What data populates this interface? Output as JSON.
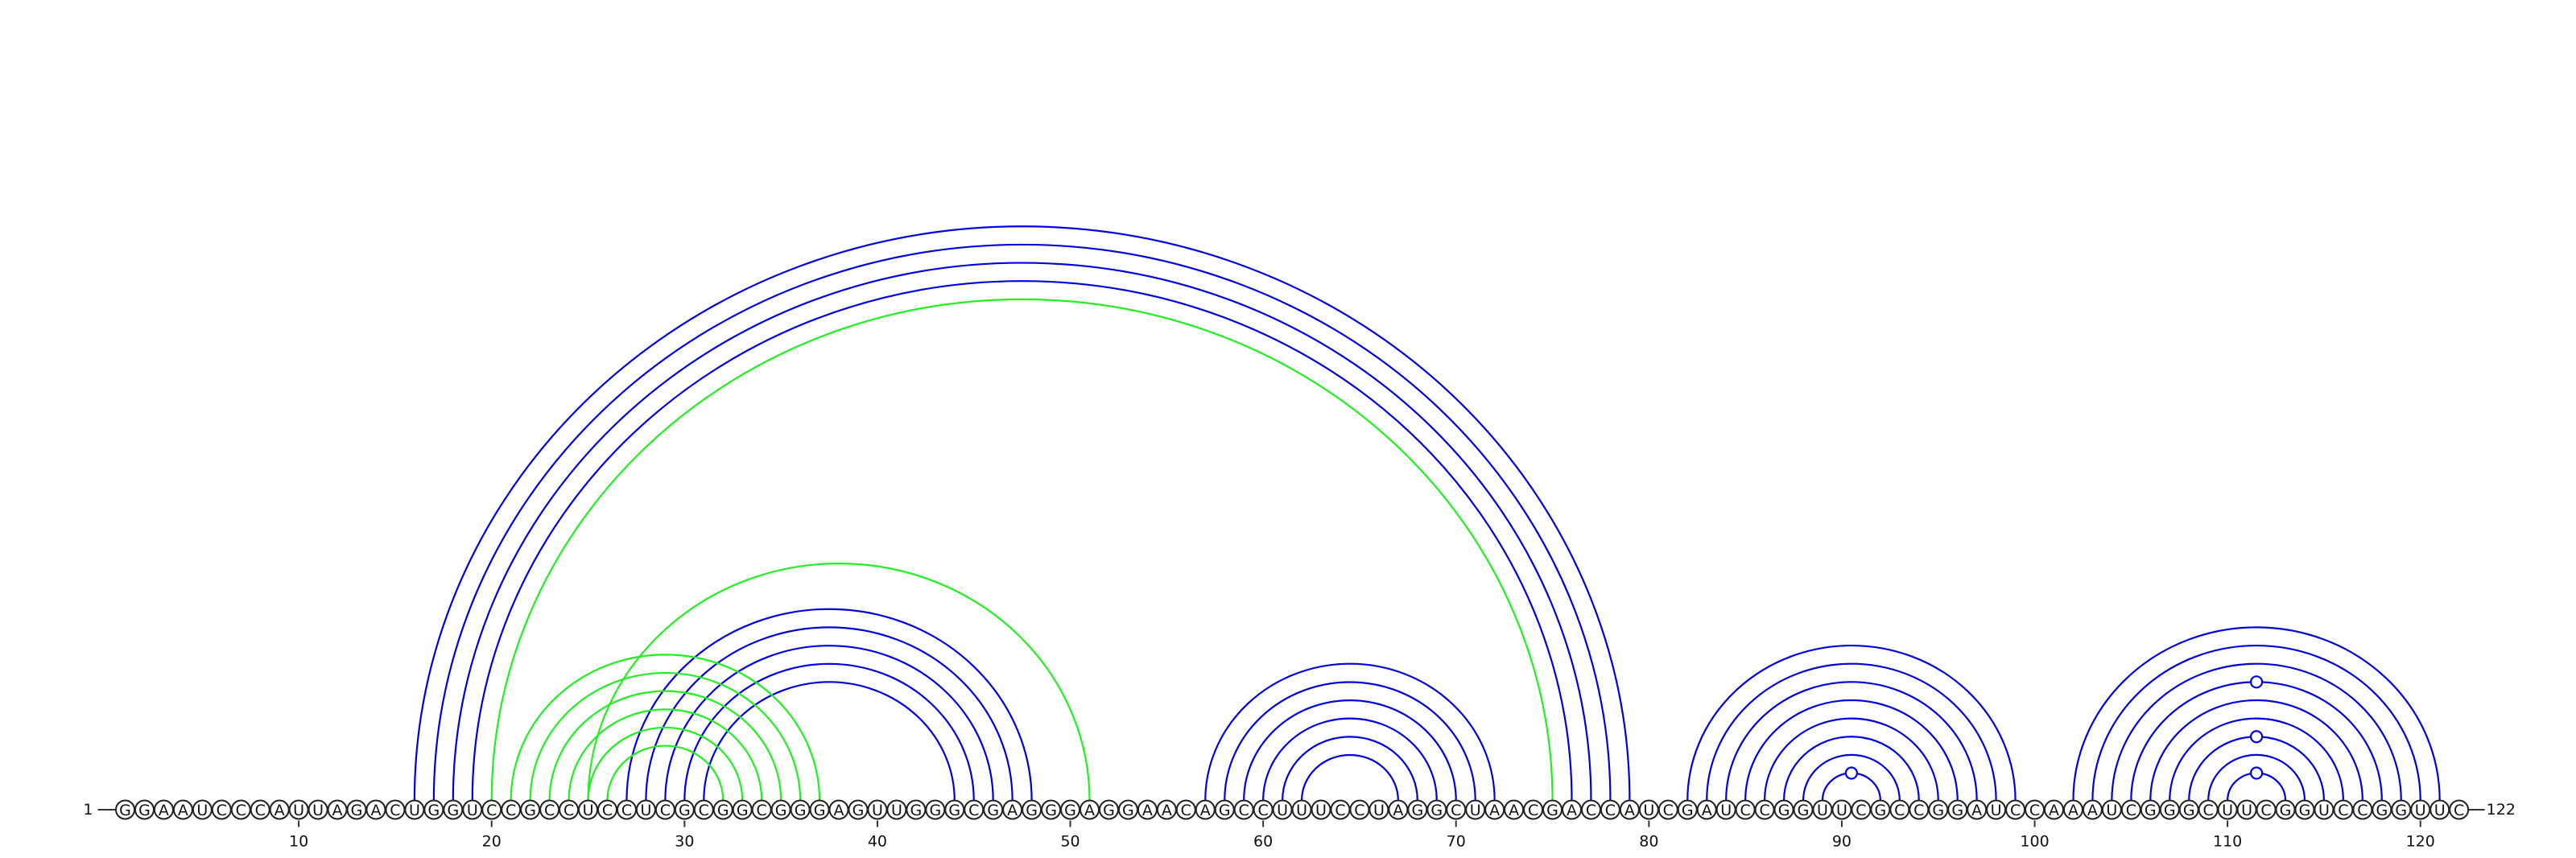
{
  "sequence": "GGAAUCCCAUUAGACUGGUCCGCCUCCUCGCGGCGGGAGUUGGGCGAGGGAGGAACAGCCUUUCCUAGGCUAACGACCAUCGAUCCGGUUCGCCGGAUCCAAAUCGGGCUUCGGUCCGGUUC",
  "start_label": "1",
  "end_label": "122",
  "ticks": [
    "10",
    "20",
    "30",
    "40",
    "50",
    "60",
    "70",
    "80",
    "90",
    "100",
    "110",
    "120"
  ],
  "colors": {
    "primary": "#0000dd",
    "pseudoknot": "#22ee22"
  },
  "pairs": [
    {
      "i": 16,
      "j": 79,
      "color": "primary"
    },
    {
      "i": 17,
      "j": 78,
      "color": "primary"
    },
    {
      "i": 18,
      "j": 77,
      "color": "primary"
    },
    {
      "i": 19,
      "j": 76,
      "color": "primary"
    },
    {
      "i": 20,
      "j": 75,
      "color": "pseudoknot"
    },
    {
      "i": 27,
      "j": 48,
      "color": "primary"
    },
    {
      "i": 28,
      "j": 47,
      "color": "primary"
    },
    {
      "i": 29,
      "j": 46,
      "color": "primary"
    },
    {
      "i": 30,
      "j": 45,
      "color": "primary"
    },
    {
      "i": 31,
      "j": 44,
      "color": "primary"
    },
    {
      "i": 25,
      "j": 51,
      "color": "pseudoknot"
    },
    {
      "i": 21,
      "j": 37,
      "color": "pseudoknot"
    },
    {
      "i": 22,
      "j": 36,
      "color": "pseudoknot"
    },
    {
      "i": 23,
      "j": 35,
      "color": "pseudoknot"
    },
    {
      "i": 24,
      "j": 34,
      "color": "pseudoknot"
    },
    {
      "i": 25,
      "j": 33,
      "color": "pseudoknot"
    },
    {
      "i": 26,
      "j": 32,
      "color": "pseudoknot"
    },
    {
      "i": 57,
      "j": 72,
      "color": "primary"
    },
    {
      "i": 58,
      "j": 71,
      "color": "primary"
    },
    {
      "i": 59,
      "j": 70,
      "color": "primary"
    },
    {
      "i": 60,
      "j": 69,
      "color": "primary"
    },
    {
      "i": 61,
      "j": 68,
      "color": "primary"
    },
    {
      "i": 62,
      "j": 67,
      "color": "primary"
    },
    {
      "i": 82,
      "j": 99,
      "color": "primary"
    },
    {
      "i": 83,
      "j": 98,
      "color": "primary"
    },
    {
      "i": 84,
      "j": 97,
      "color": "primary"
    },
    {
      "i": 85,
      "j": 96,
      "color": "primary"
    },
    {
      "i": 86,
      "j": 95,
      "color": "primary"
    },
    {
      "i": 87,
      "j": 94,
      "color": "primary"
    },
    {
      "i": 88,
      "j": 93,
      "color": "primary"
    },
    {
      "i": 89,
      "j": 92,
      "color": "primary"
    },
    {
      "i": 102,
      "j": 121,
      "color": "primary"
    },
    {
      "i": 103,
      "j": 120,
      "color": "primary"
    },
    {
      "i": 104,
      "j": 119,
      "color": "primary"
    },
    {
      "i": 105,
      "j": 118,
      "color": "primary"
    },
    {
      "i": 106,
      "j": 117,
      "color": "primary"
    },
    {
      "i": 107,
      "j": 116,
      "color": "primary"
    },
    {
      "i": 108,
      "j": 115,
      "color": "primary"
    },
    {
      "i": 109,
      "j": 114,
      "color": "primary"
    },
    {
      "i": 110,
      "j": 113,
      "color": "primary"
    }
  ]
}
